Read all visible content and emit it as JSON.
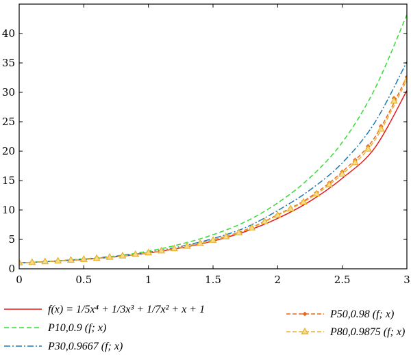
{
  "chart_data": {
    "type": "line",
    "title": "",
    "xlabel": "",
    "ylabel": "",
    "xlim": [
      0,
      3
    ],
    "ylim": [
      0,
      45
    ],
    "xticks": [
      0,
      0.5,
      1,
      1.5,
      2,
      2.5,
      3
    ],
    "xtick_labels": [
      "0",
      "0.5",
      "1",
      "1.5",
      "2",
      "2.5",
      "3"
    ],
    "yticks": [
      0,
      5,
      10,
      15,
      20,
      25,
      30,
      35,
      40
    ],
    "ytick_labels": [
      "0",
      "5",
      "10",
      "15",
      "20",
      "25",
      "30",
      "35",
      "40"
    ],
    "grid": false,
    "legend_placement": "below",
    "series": [
      {
        "name": "f(x) = 1/5x⁴ + 1/3x³ + 1/7x² + x + 1",
        "color": "#e31a1c",
        "style": "solid",
        "x": [
          0,
          0.25,
          0.5,
          0.75,
          1,
          1.25,
          1.5,
          1.75,
          2,
          2.25,
          2.5,
          2.75,
          3
        ],
        "y": [
          1.0,
          1.26,
          1.59,
          2.05,
          2.68,
          3.54,
          4.73,
          6.34,
          8.57,
          11.49,
          15.39,
          20.52,
          30.3
        ]
      },
      {
        "name": "P10,0.9 (f; x)",
        "color": "#33dd33",
        "style": "dashed",
        "x": [
          0,
          0.25,
          0.5,
          0.75,
          1,
          1.25,
          1.5,
          1.75,
          2,
          2.25,
          2.5,
          2.75,
          3
        ],
        "y": [
          1.0,
          1.3,
          1.7,
          2.2,
          3.0,
          4.2,
          5.8,
          8.0,
          11.2,
          15.5,
          21.5,
          30.5,
          43.2
        ]
      },
      {
        "name": "P30,0.9667 (f; x)",
        "color": "#1f77b4",
        "style": "dashdot",
        "x": [
          0,
          0.25,
          0.5,
          0.75,
          1,
          1.25,
          1.5,
          1.75,
          2,
          2.25,
          2.5,
          2.75,
          3
        ],
        "y": [
          1.0,
          1.28,
          1.63,
          2.12,
          2.82,
          3.8,
          5.15,
          7.0,
          9.9,
          13.4,
          18.0,
          24.8,
          35.2
        ]
      },
      {
        "name": "P50,0.98 (f; x)",
        "color": "#e8671a",
        "style": "dashed-diamond",
        "x": [
          0,
          0.25,
          0.5,
          0.75,
          1,
          1.25,
          1.5,
          1.75,
          2,
          2.25,
          2.5,
          2.75,
          3
        ],
        "y": [
          1.0,
          1.27,
          1.61,
          2.08,
          2.74,
          3.66,
          4.92,
          6.6,
          9.2,
          12.2,
          16.5,
          22.3,
          32.6
        ]
      },
      {
        "name": "P80,0.9875 (f; x)",
        "color": "#e8b030",
        "style": "dashed-triangle",
        "x": [
          0,
          0.25,
          0.5,
          0.75,
          1,
          1.25,
          1.5,
          1.75,
          2,
          2.25,
          2.5,
          2.75,
          3
        ],
        "y": [
          1.0,
          1.27,
          1.6,
          2.07,
          2.72,
          3.62,
          4.85,
          6.5,
          9.1,
          12.0,
          16.1,
          21.8,
          32.1
        ]
      }
    ]
  }
}
